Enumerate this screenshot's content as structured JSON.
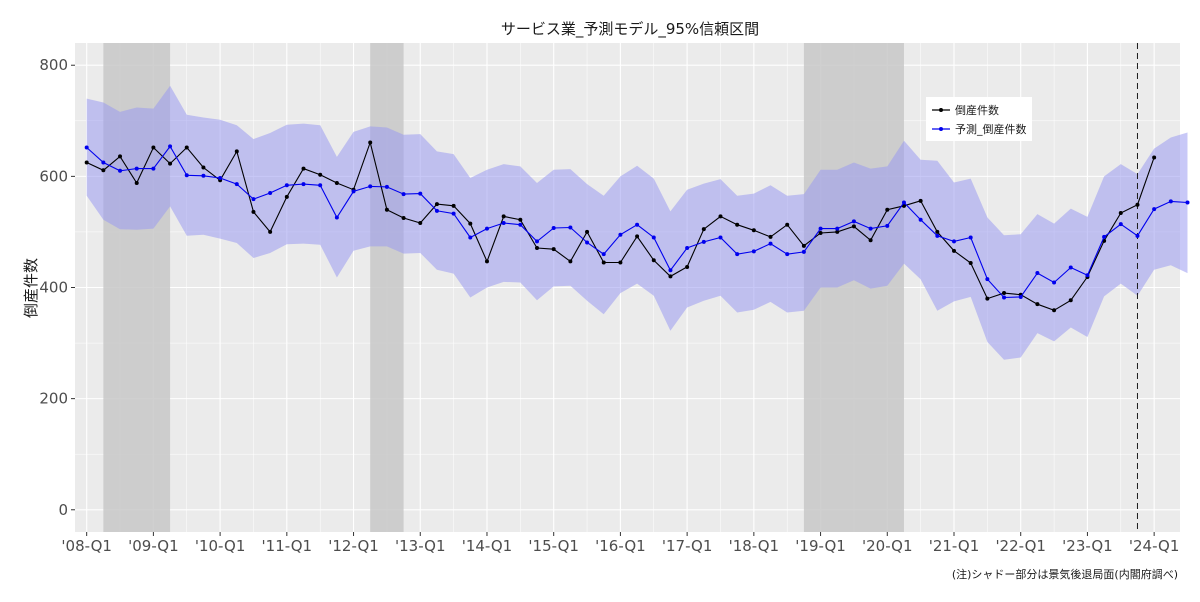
{
  "chart_data": {
    "type": "line",
    "title": "サービス業_予測モデル_95%信頼区間",
    "ylabel": "倒産件数",
    "xlabel": "",
    "note": "(注)シャドー部分は景気後退局面(内閣府調べ)",
    "ylim": [
      -40,
      840
    ],
    "yticks": [
      0,
      200,
      400,
      600,
      800
    ],
    "x_start": "2008-Q1",
    "x_end": "2024-Q2",
    "xticks": [
      "'08-Q1",
      "'09-Q1",
      "'10-Q1",
      "'11-Q1",
      "'12-Q1",
      "'13-Q1",
      "'14-Q1",
      "'15-Q1",
      "'16-Q1",
      "'17-Q1",
      "'18-Q1",
      "'19-Q1",
      "'20-Q1",
      "'21-Q1",
      "'22-Q1",
      "'23-Q1",
      "'24-Q1"
    ],
    "grid": true,
    "legend_position": "top-right",
    "colors": {
      "panel": "#ebebeb",
      "grid": "#ffffff",
      "shade": "#c8c8c8",
      "band": "#9a9af0",
      "actual": "#000000",
      "forecast": "#0000ee"
    },
    "recession_shading": [
      {
        "from": "2008-Q2",
        "to": "2009-Q2"
      },
      {
        "from": "2012-Q2",
        "to": "2012-Q4"
      },
      {
        "from": "2018-Q4",
        "to": "2020-Q2"
      }
    ],
    "forecast_start_marker": "2023-Q4",
    "series": [
      {
        "name": "倒産件数",
        "color": "#000000",
        "start": "2008-Q1",
        "values": [
          625,
          611,
          636,
          588,
          652,
          623,
          652,
          616,
          593,
          645,
          536,
          500,
          563,
          614,
          603,
          588,
          576,
          661,
          540,
          525,
          516,
          550,
          547,
          515,
          447,
          528,
          522,
          471,
          469,
          447,
          500,
          445,
          445,
          492,
          449,
          420,
          437,
          505,
          528,
          513,
          503,
          491,
          513,
          475,
          498,
          500,
          510,
          485,
          540,
          547,
          556,
          500,
          466,
          444,
          380,
          390,
          387,
          370,
          359,
          377,
          419,
          484,
          534,
          549,
          634
        ]
      },
      {
        "name": "予測_倒産件数",
        "color": "#0000ee",
        "start": "2008-Q1",
        "values": [
          652,
          625,
          610,
          614,
          614,
          654,
          602,
          601,
          597,
          586,
          559,
          570,
          584,
          586,
          584,
          526,
          573,
          582,
          581,
          568,
          569,
          538,
          533,
          490,
          506,
          516,
          513,
          483,
          507,
          508,
          481,
          460,
          495,
          513,
          490,
          431,
          471,
          482,
          490,
          460,
          465,
          479,
          460,
          464,
          506,
          506,
          519,
          506,
          511,
          553,
          522,
          493,
          483,
          490,
          415,
          382,
          383,
          426,
          409,
          436,
          422,
          491,
          514,
          493,
          541,
          555,
          553
        ]
      }
    ],
    "confidence_band": {
      "start": "2008-Q1",
      "upper": [
        740,
        733,
        716,
        724,
        722,
        763,
        711,
        706,
        702,
        692,
        667,
        678,
        693,
        695,
        692,
        635,
        680,
        690,
        688,
        675,
        676,
        645,
        640,
        597,
        612,
        622,
        618,
        588,
        612,
        613,
        586,
        565,
        600,
        619,
        596,
        537,
        576,
        587,
        595,
        565,
        569,
        584,
        565,
        568,
        612,
        612,
        625,
        614,
        618,
        664,
        630,
        628,
        589,
        596,
        526,
        494,
        496,
        532,
        515,
        542,
        527,
        600,
        622,
        604,
        650,
        670,
        679
      ],
      "lower": [
        565,
        522,
        505,
        504,
        506,
        546,
        493,
        495,
        488,
        480,
        453,
        462,
        478,
        479,
        477,
        418,
        466,
        474,
        474,
        461,
        462,
        432,
        425,
        382,
        400,
        410,
        409,
        377,
        402,
        403,
        376,
        352,
        390,
        407,
        385,
        322,
        364,
        376,
        385,
        355,
        360,
        374,
        355,
        358,
        400,
        400,
        413,
        398,
        403,
        443,
        415,
        358,
        375,
        383,
        302,
        270,
        274,
        318,
        303,
        328,
        311,
        384,
        407,
        385,
        432,
        440,
        426
      ]
    }
  }
}
